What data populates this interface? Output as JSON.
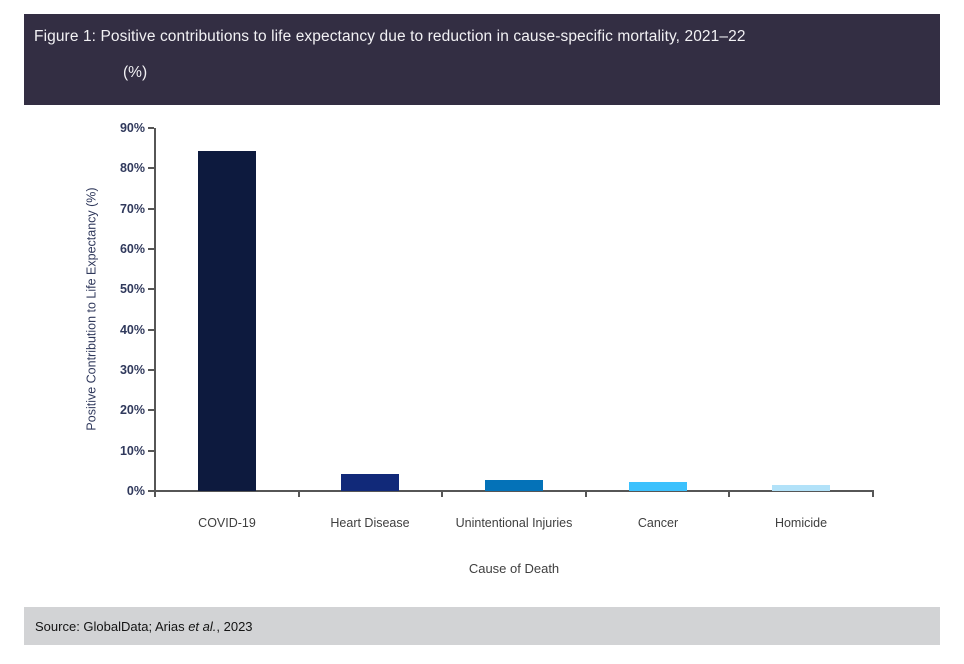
{
  "header": {
    "title_line1": "Figure 1: Positive contributions to life expectancy due to reduction in cause-specific mortality, 2021–22",
    "title_line2": "(%)",
    "bg_color": "#332e43",
    "text_color": "#f2f1f4"
  },
  "chart_data": {
    "type": "bar",
    "title": "Figure 1: Positive contributions to life expectancy due to reduction in cause-specific mortality, 2021–22 (%)",
    "categories": [
      "COVID-19",
      "Heart Disease",
      "Unintentional Injuries",
      "Cancer",
      "Homicide"
    ],
    "values": [
      84.3,
      4.1,
      2.8,
      2.2,
      1.5
    ],
    "bar_colors": [
      "#0d1a3e",
      "#112979",
      "#0472b8",
      "#3cc1fd",
      "#b2e2f9"
    ],
    "xlabel": "Cause of Death",
    "ylabel": "Positive Contribution to Life Expectancy (%)",
    "ylim": [
      0,
      90
    ],
    "ytick_step": 10,
    "ytick_suffix": "%",
    "grid": false,
    "legend": "none",
    "axis_color": "#565656"
  },
  "footer": {
    "source_prefix": "Source: GlobalData; Arias ",
    "source_italic": "et al.",
    "source_suffix": ", 2023",
    "bg_color": "#d2d3d5"
  }
}
